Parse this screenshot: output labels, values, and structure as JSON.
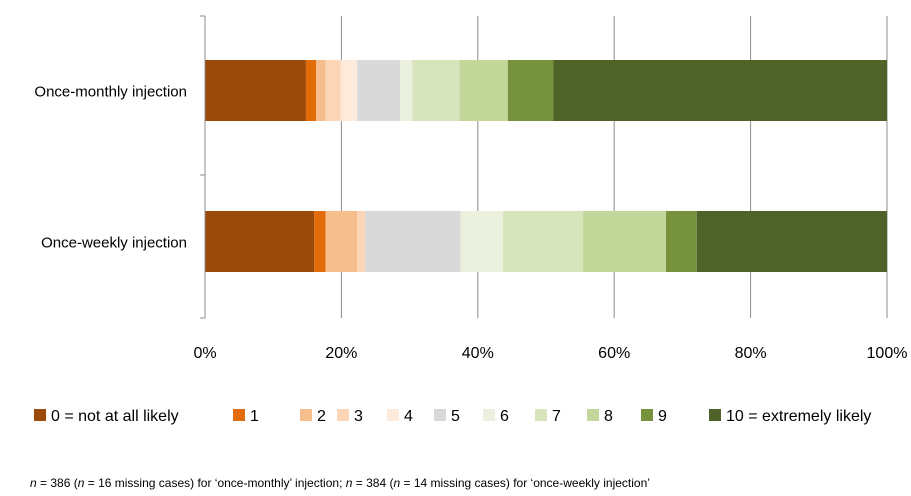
{
  "chart_data": {
    "type": "bar",
    "orientation": "horizontal",
    "stacked": "percent",
    "categories": [
      "Once-monthly injection",
      "Once-weekly injection"
    ],
    "xlim": [
      0,
      100
    ],
    "x_ticks": [
      "0%",
      "20%",
      "40%",
      "60%",
      "80%",
      "100%"
    ],
    "x_tick_values": [
      0,
      20,
      40,
      60,
      80,
      100
    ],
    "grid": true,
    "legend_position": "bottom",
    "series": [
      {
        "name": "0 = not at all likely",
        "color": "#9a4a0a",
        "values": [
          14.8,
          16.0
        ]
      },
      {
        "name": "1",
        "color": "#e36c0a",
        "values": [
          1.5,
          1.7
        ]
      },
      {
        "name": "2",
        "color": "#f7be8d",
        "values": [
          1.4,
          4.6
        ]
      },
      {
        "name": "3",
        "color": "#fbd5b5",
        "values": [
          2.2,
          1.2
        ]
      },
      {
        "name": "4",
        "color": "#fdeada",
        "values": [
          2.4,
          0.0
        ]
      },
      {
        "name": "5",
        "color": "#d9d9d9",
        "values": [
          6.3,
          14.0
        ]
      },
      {
        "name": "6",
        "color": "#ebf1de",
        "values": [
          1.8,
          6.2
        ]
      },
      {
        "name": "7",
        "color": "#d8e4bc",
        "values": [
          6.9,
          11.7
        ]
      },
      {
        "name": "8",
        "color": "#c4d79b",
        "values": [
          7.1,
          12.2
        ]
      },
      {
        "name": "9",
        "color": "#76923c",
        "values": [
          6.7,
          4.5
        ]
      },
      {
        "name": "10 = extremely likely",
        "color": "#4f6228",
        "values": [
          48.9,
          27.9
        ]
      }
    ]
  },
  "footnote": {
    "n1": "n",
    "t1": " = 386 (",
    "n2": "n",
    "t2": " = 16 missing cases) for ‘once-monthly’ injection; ",
    "n3": "n",
    "t3": " = 384 (",
    "n4": "n",
    "t4": " = 14 missing cases) for ‘once-weekly injection’"
  }
}
